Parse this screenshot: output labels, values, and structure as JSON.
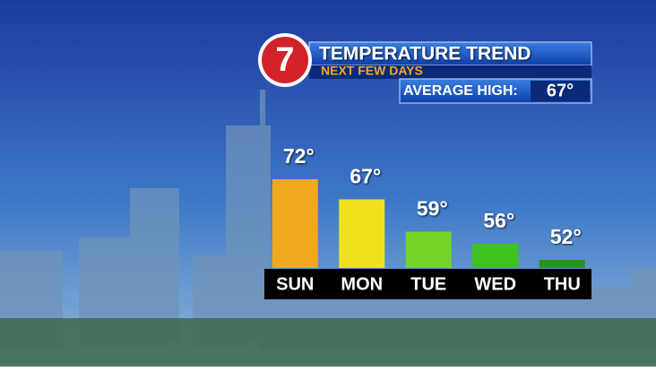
{
  "chart_data": {
    "type": "bar",
    "logo": "7",
    "title": "TEMPERATURE TREND",
    "subtitle": "NEXT FEW DAYS",
    "average_label": "AVERAGE HIGH:",
    "average_value": "67°",
    "categories": [
      "SUN",
      "MON",
      "TUE",
      "WED",
      "THU"
    ],
    "values": [
      72,
      67,
      59,
      56,
      52
    ],
    "value_labels": [
      "72°",
      "67°",
      "59°",
      "56°",
      "52°"
    ],
    "colors": [
      "#f2a81e",
      "#eee21e",
      "#74d42a",
      "#3fc21e",
      "#27951a"
    ],
    "ylim": [
      50,
      72
    ]
  }
}
